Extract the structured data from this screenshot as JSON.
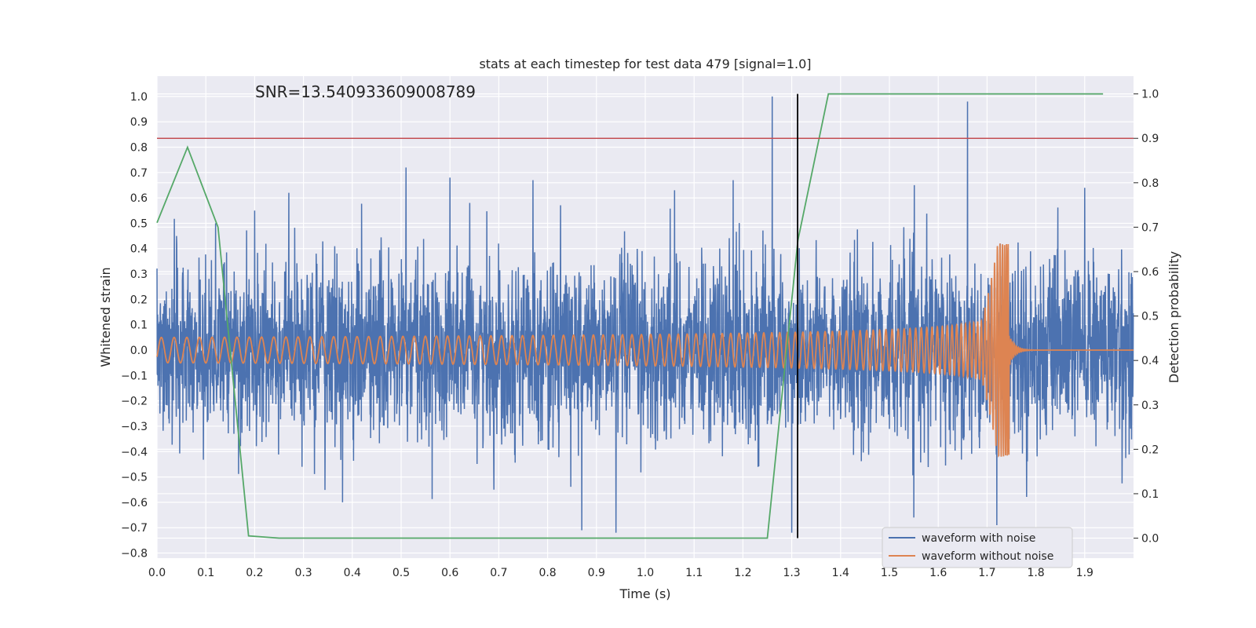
{
  "chart_data": {
    "type": "line",
    "title": "stats at each timestep for test data 479 [signal=1.0]",
    "xlabel": "Time (s)",
    "ylabel": "Whitened strain",
    "y2label": "Detection probability",
    "annotation": "SNR=13.540933609008789",
    "xlim": [
      0.0,
      2.0
    ],
    "ylim": [
      -0.82,
      1.08
    ],
    "y2lim": [
      -0.045,
      1.04
    ],
    "grid": true,
    "legend_position": "lower-right",
    "xticks": [
      "0.0",
      "0.1",
      "0.2",
      "0.3",
      "0.4",
      "0.5",
      "0.6",
      "0.7",
      "0.8",
      "0.9",
      "1.0",
      "1.1",
      "1.2",
      "1.3",
      "1.4",
      "1.5",
      "1.6",
      "1.7",
      "1.8",
      "1.9"
    ],
    "yticks": [
      "1.0",
      "0.9",
      "0.8",
      "0.7",
      "0.6",
      "0.5",
      "0.4",
      "0.3",
      "0.2",
      "0.1",
      "0.0",
      "−0.1",
      "−0.2",
      "−0.3",
      "−0.4",
      "−0.5",
      "−0.6",
      "−0.7",
      "−0.8"
    ],
    "y2ticks": [
      "1.0",
      "0.9",
      "0.8",
      "0.7",
      "0.6",
      "0.5",
      "0.4",
      "0.3",
      "0.2",
      "0.1",
      "0.0"
    ],
    "series": [
      {
        "name": "waveform with noise",
        "axis": "left",
        "color": "#4c72b0",
        "description_of_signal": "random noise approx amplitude 0.3, max ~1.0 near t=1.26",
        "noise_std": 0.17,
        "spikes": [
          [
            0.04,
            0.45
          ],
          [
            0.12,
            0.5
          ],
          [
            0.2,
            0.55
          ],
          [
            0.27,
            0.62
          ],
          [
            0.38,
            -0.6
          ],
          [
            0.51,
            0.72
          ],
          [
            0.6,
            0.68
          ],
          [
            0.69,
            -0.55
          ],
          [
            0.77,
            0.67
          ],
          [
            0.87,
            -0.71
          ],
          [
            0.94,
            -0.72
          ],
          [
            1.06,
            0.63
          ],
          [
            1.18,
            0.67
          ],
          [
            1.26,
            1.0
          ],
          [
            1.3,
            -0.72
          ],
          [
            1.55,
            -0.66
          ],
          [
            1.66,
            0.98
          ],
          [
            1.72,
            -0.69
          ],
          [
            1.9,
            0.64
          ]
        ]
      },
      {
        "name": "waveform without noise",
        "axis": "left",
        "color": "#dd8452",
        "type": "chirp",
        "merger_time": 1.745,
        "freq_start": 38,
        "amp_start": 0.05,
        "amp_peak": 0.42
      },
      {
        "name": "",
        "axis": "right",
        "color": "#55a868",
        "x": [
          0.0,
          0.0625,
          0.125,
          0.1875,
          0.25,
          0.3125,
          0.375,
          0.4375,
          0.5,
          0.5625,
          0.625,
          0.6875,
          0.75,
          0.8125,
          0.875,
          0.9375,
          1.0,
          1.0625,
          1.125,
          1.1875,
          1.25,
          1.3125,
          1.375,
          1.4375,
          1.5,
          1.5625,
          1.625,
          1.6875,
          1.75,
          1.8125,
          1.875,
          1.9375
        ],
        "values": [
          0.71,
          0.88,
          0.7,
          0.005,
          0.0,
          0.0,
          0.0,
          0.0,
          0.0,
          0.0,
          0.0,
          0.0,
          0.0,
          0.0,
          0.0,
          0.0,
          0.0,
          0.0,
          0.0,
          0.0,
          0.0,
          0.67,
          1.0,
          1.0,
          1.0,
          1.0,
          1.0,
          1.0,
          1.0,
          1.0,
          1.0,
          1.0
        ]
      }
    ],
    "threshold": {
      "axis": "right",
      "value": 0.9,
      "color": "#c44e52"
    },
    "vline": {
      "x": 1.312,
      "color": "#000000"
    }
  },
  "legend": {
    "items": [
      {
        "label": "waveform with noise",
        "color": "#4c72b0"
      },
      {
        "label": "waveform without noise",
        "color": "#dd8452"
      }
    ]
  }
}
